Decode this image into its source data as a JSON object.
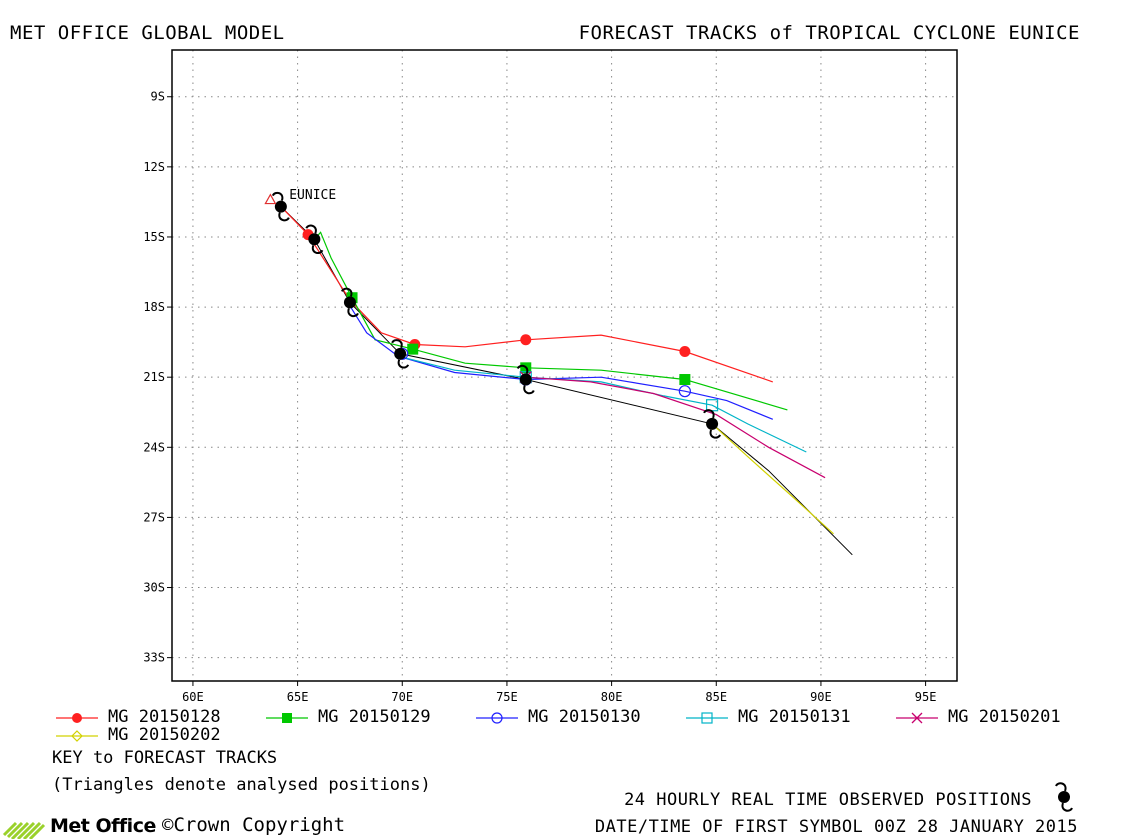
{
  "header": {
    "left": "MET OFFICE GLOBAL MODEL",
    "right": "FORECAST TRACKS of TROPICAL CYCLONE EUNICE"
  },
  "chart_data": {
    "type": "line",
    "title": "FORECAST TRACKS of TROPICAL CYCLONE EUNICE",
    "xlabel": "",
    "ylabel": "",
    "xlim": [
      59,
      96.5
    ],
    "ylim": [
      -34,
      -7
    ],
    "grid": true,
    "x_ticks": [
      {
        "value": 60,
        "label": "60E"
      },
      {
        "value": 65,
        "label": "65E"
      },
      {
        "value": 70,
        "label": "70E"
      },
      {
        "value": 75,
        "label": "75E"
      },
      {
        "value": 80,
        "label": "80E"
      },
      {
        "value": 85,
        "label": "85E"
      },
      {
        "value": 90,
        "label": "90E"
      },
      {
        "value": 95,
        "label": "95E"
      }
    ],
    "y_ticks": [
      {
        "value": -9,
        "label": "9S"
      },
      {
        "value": -12,
        "label": "12S"
      },
      {
        "value": -15,
        "label": "15S"
      },
      {
        "value": -18,
        "label": "18S"
      },
      {
        "value": -21,
        "label": "21S"
      },
      {
        "value": -24,
        "label": "24S"
      },
      {
        "value": -27,
        "label": "27S"
      },
      {
        "value": -30,
        "label": "30S"
      },
      {
        "value": -33,
        "label": "33S"
      }
    ],
    "storm_label": {
      "text": "EUNICE",
      "lon": 64.6,
      "lat": -13.2
    },
    "analysed_positions": [
      {
        "lon": 63.7,
        "lat": -13.4,
        "color": "#e03030"
      }
    ],
    "series": [
      {
        "name": "MG 20150128",
        "color": "#ff2020",
        "marker": "filled-circle",
        "points": [
          [
            64.2,
            -13.7
          ],
          [
            65.5,
            -14.9
          ],
          [
            66.5,
            -16.3
          ],
          [
            67.5,
            -17.7
          ],
          [
            69.0,
            -19.1
          ],
          [
            70.6,
            -19.6
          ],
          [
            73.0,
            -19.7
          ],
          [
            75.9,
            -19.4
          ],
          [
            79.5,
            -19.2
          ],
          [
            83.5,
            -19.9
          ],
          [
            87.7,
            -21.2
          ]
        ],
        "marker_points": [
          [
            65.5,
            -14.9
          ],
          [
            70.6,
            -19.6
          ],
          [
            75.9,
            -19.4
          ],
          [
            83.5,
            -19.9
          ]
        ]
      },
      {
        "name": "MG 20150129",
        "color": "#00c800",
        "marker": "filled-square",
        "points": [
          [
            65.8,
            -15.1
          ],
          [
            66.1,
            -14.8
          ],
          [
            66.6,
            -15.9
          ],
          [
            67.6,
            -17.6
          ],
          [
            68.7,
            -19.4
          ],
          [
            70.5,
            -19.8
          ],
          [
            73.0,
            -20.4
          ],
          [
            75.9,
            -20.6
          ],
          [
            79.5,
            -20.7
          ],
          [
            83.5,
            -21.1
          ],
          [
            88.4,
            -22.4
          ]
        ],
        "marker_points": [
          [
            67.6,
            -17.6
          ],
          [
            70.5,
            -19.8
          ],
          [
            75.9,
            -20.6
          ],
          [
            83.5,
            -21.1
          ]
        ]
      },
      {
        "name": "MG 20150130",
        "color": "#2020ff",
        "marker": "open-circle",
        "points": [
          [
            67.4,
            -17.8
          ],
          [
            68.3,
            -19.1
          ],
          [
            69.8,
            -20.1
          ],
          [
            72.5,
            -20.8
          ],
          [
            75.9,
            -21.1
          ],
          [
            79.5,
            -21.0
          ],
          [
            83.5,
            -21.6
          ],
          [
            85.5,
            -22.0
          ],
          [
            87.7,
            -22.8
          ]
        ],
        "marker_points": [
          [
            70.0,
            -20.0
          ],
          [
            75.9,
            -21.1
          ],
          [
            83.5,
            -21.6
          ]
        ]
      },
      {
        "name": "MG 20150131",
        "color": "#00b4c8",
        "marker": "open-square",
        "points": [
          [
            69.8,
            -20.1
          ],
          [
            72.5,
            -20.7
          ],
          [
            75.9,
            -21.0
          ],
          [
            79.5,
            -21.2
          ],
          [
            82.5,
            -21.8
          ],
          [
            84.8,
            -22.2
          ],
          [
            86.5,
            -23.0
          ],
          [
            89.3,
            -24.2
          ]
        ],
        "marker_points": [
          [
            75.9,
            -21.0
          ],
          [
            84.8,
            -22.2
          ]
        ]
      },
      {
        "name": "MG 20150201",
        "color": "#c8006e",
        "marker": "cross",
        "points": [
          [
            75.9,
            -21.0
          ],
          [
            79.0,
            -21.2
          ],
          [
            82.0,
            -21.7
          ],
          [
            85.0,
            -22.6
          ],
          [
            87.5,
            -24.0
          ],
          [
            90.2,
            -25.3
          ]
        ],
        "marker_points": [
          [
            75.9,
            -21.0
          ]
        ]
      },
      {
        "name": "MG 20150202",
        "color": "#d2d200",
        "marker": "open-diamond",
        "points": [
          [
            84.8,
            -23.0
          ],
          [
            86.5,
            -24.4
          ],
          [
            88.5,
            -26.0
          ],
          [
            90.6,
            -27.7
          ]
        ],
        "marker_points": [
          [
            84.8,
            -23.0
          ]
        ]
      }
    ],
    "observed_track": {
      "color": "#000000",
      "points": [
        [
          64.2,
          -13.7
        ],
        [
          65.8,
          -15.1
        ],
        [
          67.5,
          -17.8
        ],
        [
          69.9,
          -20.0
        ],
        [
          75.9,
          -21.1
        ],
        [
          84.8,
          -23.0
        ],
        [
          87.5,
          -25.0
        ],
        [
          91.5,
          -28.6
        ]
      ],
      "symbol_points": [
        [
          64.2,
          -13.7
        ],
        [
          65.8,
          -15.1
        ],
        [
          67.5,
          -17.8
        ],
        [
          69.9,
          -20.0
        ],
        [
          75.9,
          -21.1
        ],
        [
          84.8,
          -23.0
        ]
      ]
    }
  },
  "legend": {
    "entries": [
      {
        "label": "MG 20150128",
        "color": "#ff2020",
        "marker": "filled-circle"
      },
      {
        "label": "MG 20150129",
        "color": "#00c800",
        "marker": "filled-square"
      },
      {
        "label": "MG 20150130",
        "color": "#2020ff",
        "marker": "open-circle"
      },
      {
        "label": "MG 20150131",
        "color": "#00b4c8",
        "marker": "open-square"
      },
      {
        "label": "MG 20150201",
        "color": "#c8006e",
        "marker": "cross"
      },
      {
        "label": "MG 20150202",
        "color": "#d2d200",
        "marker": "open-diamond"
      }
    ]
  },
  "key": {
    "title": "KEY to FORECAST TRACKS",
    "note": "(Triangles denote analysed positions)"
  },
  "footer": {
    "observed": "24 HOURLY REAL TIME OBSERVED POSITIONS",
    "datetime": "DATE/TIME OF FIRST SYMBOL 00Z 28 JANUARY 2015",
    "logo": "Met Office",
    "copyright": "©Crown Copyright"
  }
}
